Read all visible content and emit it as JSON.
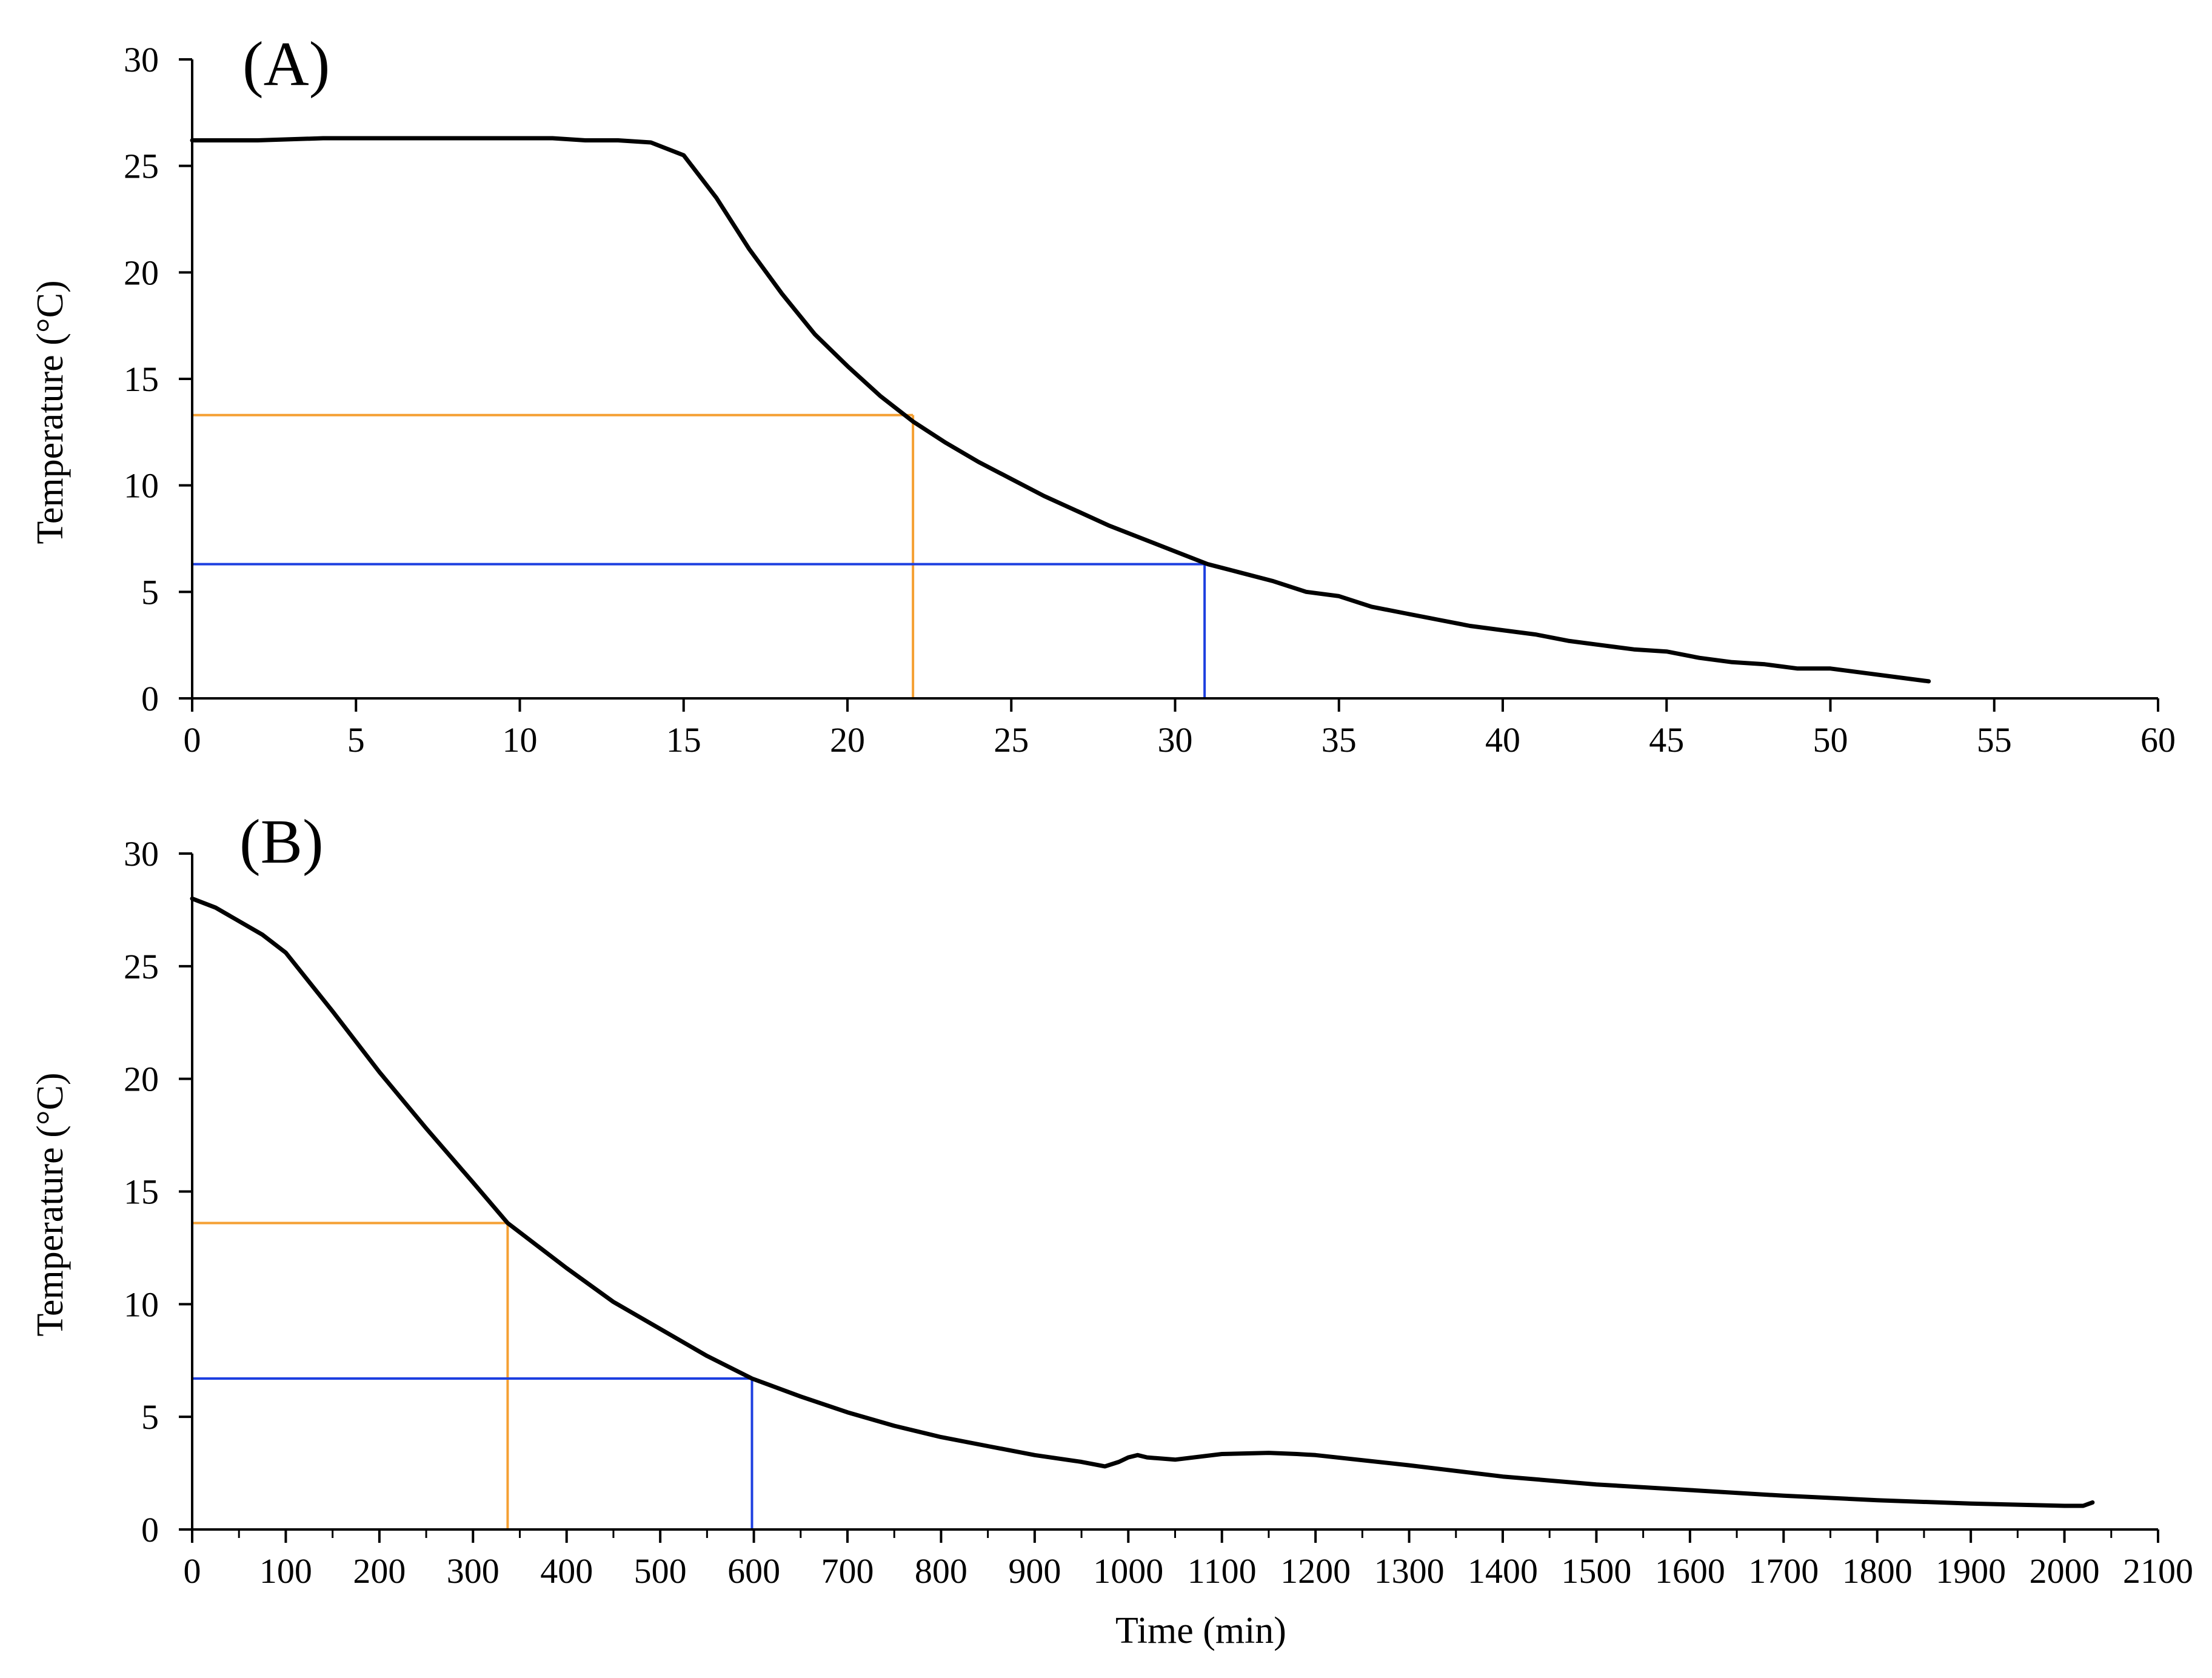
{
  "figure": {
    "colors": {
      "curve": "#000000",
      "orange_marker": "#F5A033",
      "blue_marker": "#1D3FE0",
      "axis": "#000000"
    }
  },
  "chart_data": [
    {
      "type": "line",
      "panel_label": "(A)",
      "xlabel": "",
      "ylabel": "Temperature (°C)",
      "xlim": [
        0,
        60
      ],
      "ylim": [
        0,
        30
      ],
      "x_ticks": [
        0,
        5,
        10,
        15,
        20,
        25,
        30,
        35,
        40,
        45,
        50,
        55,
        60
      ],
      "x_tick_labels": [
        "0",
        "5",
        "10",
        "15",
        "20",
        "25",
        "30",
        "35",
        "40",
        "45",
        "50",
        "55",
        "60"
      ],
      "y_ticks": [
        0,
        5,
        10,
        15,
        20,
        25,
        30
      ],
      "y_tick_labels": [
        "0",
        "5",
        "10",
        "15",
        "20",
        "25",
        "30"
      ],
      "x_minor_step": null,
      "series": [
        {
          "name": "temperature",
          "x": [
            0,
            2,
            4,
            6,
            8,
            10,
            11,
            12,
            13,
            14,
            15,
            16,
            17,
            18,
            19,
            20,
            21,
            22,
            23,
            24,
            25,
            26,
            27,
            28,
            29,
            30,
            31,
            32,
            33,
            34,
            35,
            36,
            37,
            38,
            39,
            40,
            41,
            42,
            43,
            44,
            45,
            46,
            47,
            48,
            49,
            50,
            51,
            52,
            53
          ],
          "y": [
            26.2,
            26.2,
            26.3,
            26.3,
            26.3,
            26.3,
            26.3,
            26.2,
            26.2,
            26.1,
            25.5,
            23.5,
            21.1,
            19.0,
            17.1,
            15.6,
            14.2,
            13.0,
            12.0,
            11.1,
            10.3,
            9.5,
            8.8,
            8.1,
            7.5,
            6.9,
            6.3,
            5.9,
            5.5,
            5.0,
            4.8,
            4.3,
            4.0,
            3.7,
            3.4,
            3.2,
            3.0,
            2.7,
            2.5,
            2.3,
            2.2,
            1.9,
            1.7,
            1.6,
            1.4,
            1.4,
            1.2,
            1.0,
            0.8
          ]
        }
      ],
      "markers": [
        {
          "color": "orange",
          "x": 22,
          "y": 13.3
        },
        {
          "color": "blue",
          "x": 30.9,
          "y": 6.3
        }
      ]
    },
    {
      "type": "line",
      "panel_label": "(B)",
      "xlabel": "Time (min)",
      "ylabel": "Temperature (°C)",
      "xlim": [
        0,
        2100
      ],
      "ylim": [
        0,
        30
      ],
      "x_ticks": [
        0,
        100,
        200,
        300,
        400,
        500,
        600,
        700,
        800,
        900,
        1000,
        1100,
        1200,
        1300,
        1400,
        1500,
        1600,
        1700,
        1800,
        1900,
        2000,
        2100
      ],
      "x_tick_labels": [
        "0",
        "100",
        "200",
        "300",
        "400",
        "500",
        "600",
        "700",
        "800",
        "900",
        "1000",
        "1100",
        "1200",
        "1300",
        "1400",
        "1500",
        "1600",
        "1700",
        "1800",
        "1900",
        "2000",
        "2100"
      ],
      "y_ticks": [
        0,
        5,
        10,
        15,
        20,
        25,
        30
      ],
      "y_tick_labels": [
        "0",
        "5",
        "10",
        "15",
        "20",
        "25",
        "30"
      ],
      "x_minor_step": 50,
      "series": [
        {
          "name": "temperature",
          "x": [
            0,
            25,
            50,
            75,
            100,
            150,
            200,
            250,
            300,
            337,
            400,
            450,
            500,
            550,
            598,
            650,
            700,
            750,
            800,
            850,
            900,
            950,
            975,
            990,
            1000,
            1010,
            1020,
            1050,
            1100,
            1150,
            1180,
            1200,
            1300,
            1400,
            1500,
            1600,
            1700,
            1800,
            1900,
            2000,
            2020,
            2030
          ],
          "y": [
            28.0,
            27.6,
            27.0,
            26.4,
            25.6,
            23.0,
            20.3,
            17.8,
            15.4,
            13.6,
            11.6,
            10.1,
            8.9,
            7.7,
            6.7,
            5.9,
            5.2,
            4.6,
            4.1,
            3.7,
            3.3,
            3.0,
            2.8,
            3.0,
            3.2,
            3.3,
            3.2,
            3.1,
            3.35,
            3.4,
            3.35,
            3.3,
            2.85,
            2.35,
            2.0,
            1.75,
            1.5,
            1.3,
            1.15,
            1.05,
            1.05,
            1.2
          ]
        }
      ],
      "markers": [
        {
          "color": "orange",
          "x": 337,
          "y": 13.6
        },
        {
          "color": "blue",
          "x": 598,
          "y": 6.7
        }
      ]
    }
  ]
}
